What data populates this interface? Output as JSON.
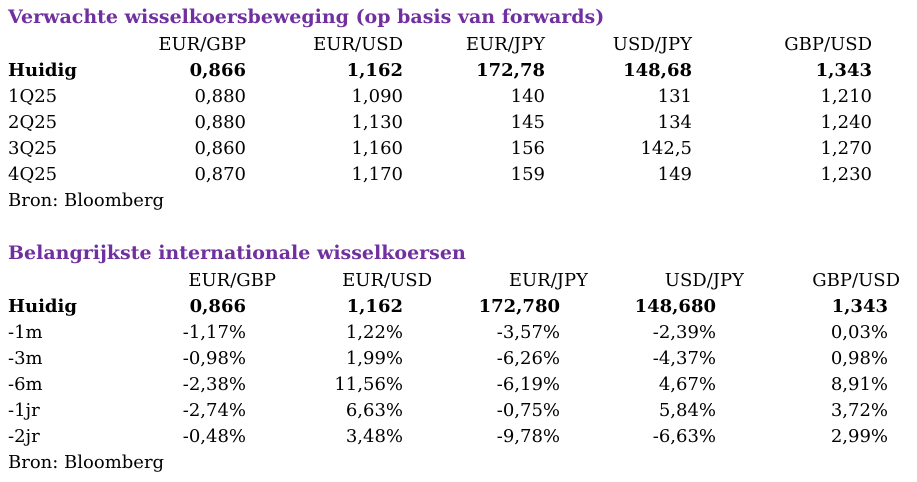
{
  "forwards": {
    "title": "Verwachte wisselkoersbeweging (op basis van forwards)",
    "headers": [
      "",
      "EUR/GBP",
      "EUR/USD",
      "EUR/JPY",
      "USD/JPY",
      "GBP/USD"
    ],
    "rows": [
      {
        "label": "Huidig",
        "values": [
          "0,866",
          "1,162",
          "172,78",
          "148,68",
          "1,343"
        ]
      },
      {
        "label": "1Q25",
        "values": [
          "0,880",
          "1,090",
          "140",
          "131",
          "1,210"
        ]
      },
      {
        "label": "2Q25",
        "values": [
          "0,880",
          "1,130",
          "145",
          "134",
          "1,240"
        ]
      },
      {
        "label": "3Q25",
        "values": [
          "0,860",
          "1,160",
          "156",
          "142,5",
          "1,270"
        ]
      },
      {
        "label": "4Q25",
        "values": [
          "0,870",
          "1,170",
          "159",
          "149",
          "1,230"
        ]
      }
    ],
    "source": "Bron: Bloomberg"
  },
  "rates": {
    "title": "Belangrijkste internationale wisselkoersen",
    "headers": [
      "",
      "EUR/GBP",
      "EUR/USD",
      "EUR/JPY",
      "USD/JPY",
      "GBP/USD"
    ],
    "rows": [
      {
        "label": "Huidig",
        "values": [
          "0,866",
          "1,162",
          "172,780",
          "148,680",
          "1,343"
        ]
      },
      {
        "label": "-1m",
        "values": [
          "-1,17%",
          "1,22%",
          "-3,57%",
          "-2,39%",
          "0,03%"
        ]
      },
      {
        "label": "-3m",
        "values": [
          "-0,98%",
          "1,99%",
          "-6,26%",
          "-4,37%",
          "0,98%"
        ]
      },
      {
        "label": "-6m",
        "values": [
          "-2,38%",
          "11,56%",
          "-6,19%",
          "4,67%",
          "8,91%"
        ]
      },
      {
        "label": "-1jr",
        "values": [
          "-2,74%",
          "6,63%",
          "-0,75%",
          "5,84%",
          "3,72%"
        ]
      },
      {
        "label": "-2jr",
        "values": [
          "-0,48%",
          "3,48%",
          "-9,78%",
          "-6,63%",
          "2,99%"
        ]
      }
    ],
    "source": "Bron: Bloomberg"
  },
  "colors": {
    "title": "#7030a0",
    "text": "#000000",
    "background": "#ffffff"
  }
}
